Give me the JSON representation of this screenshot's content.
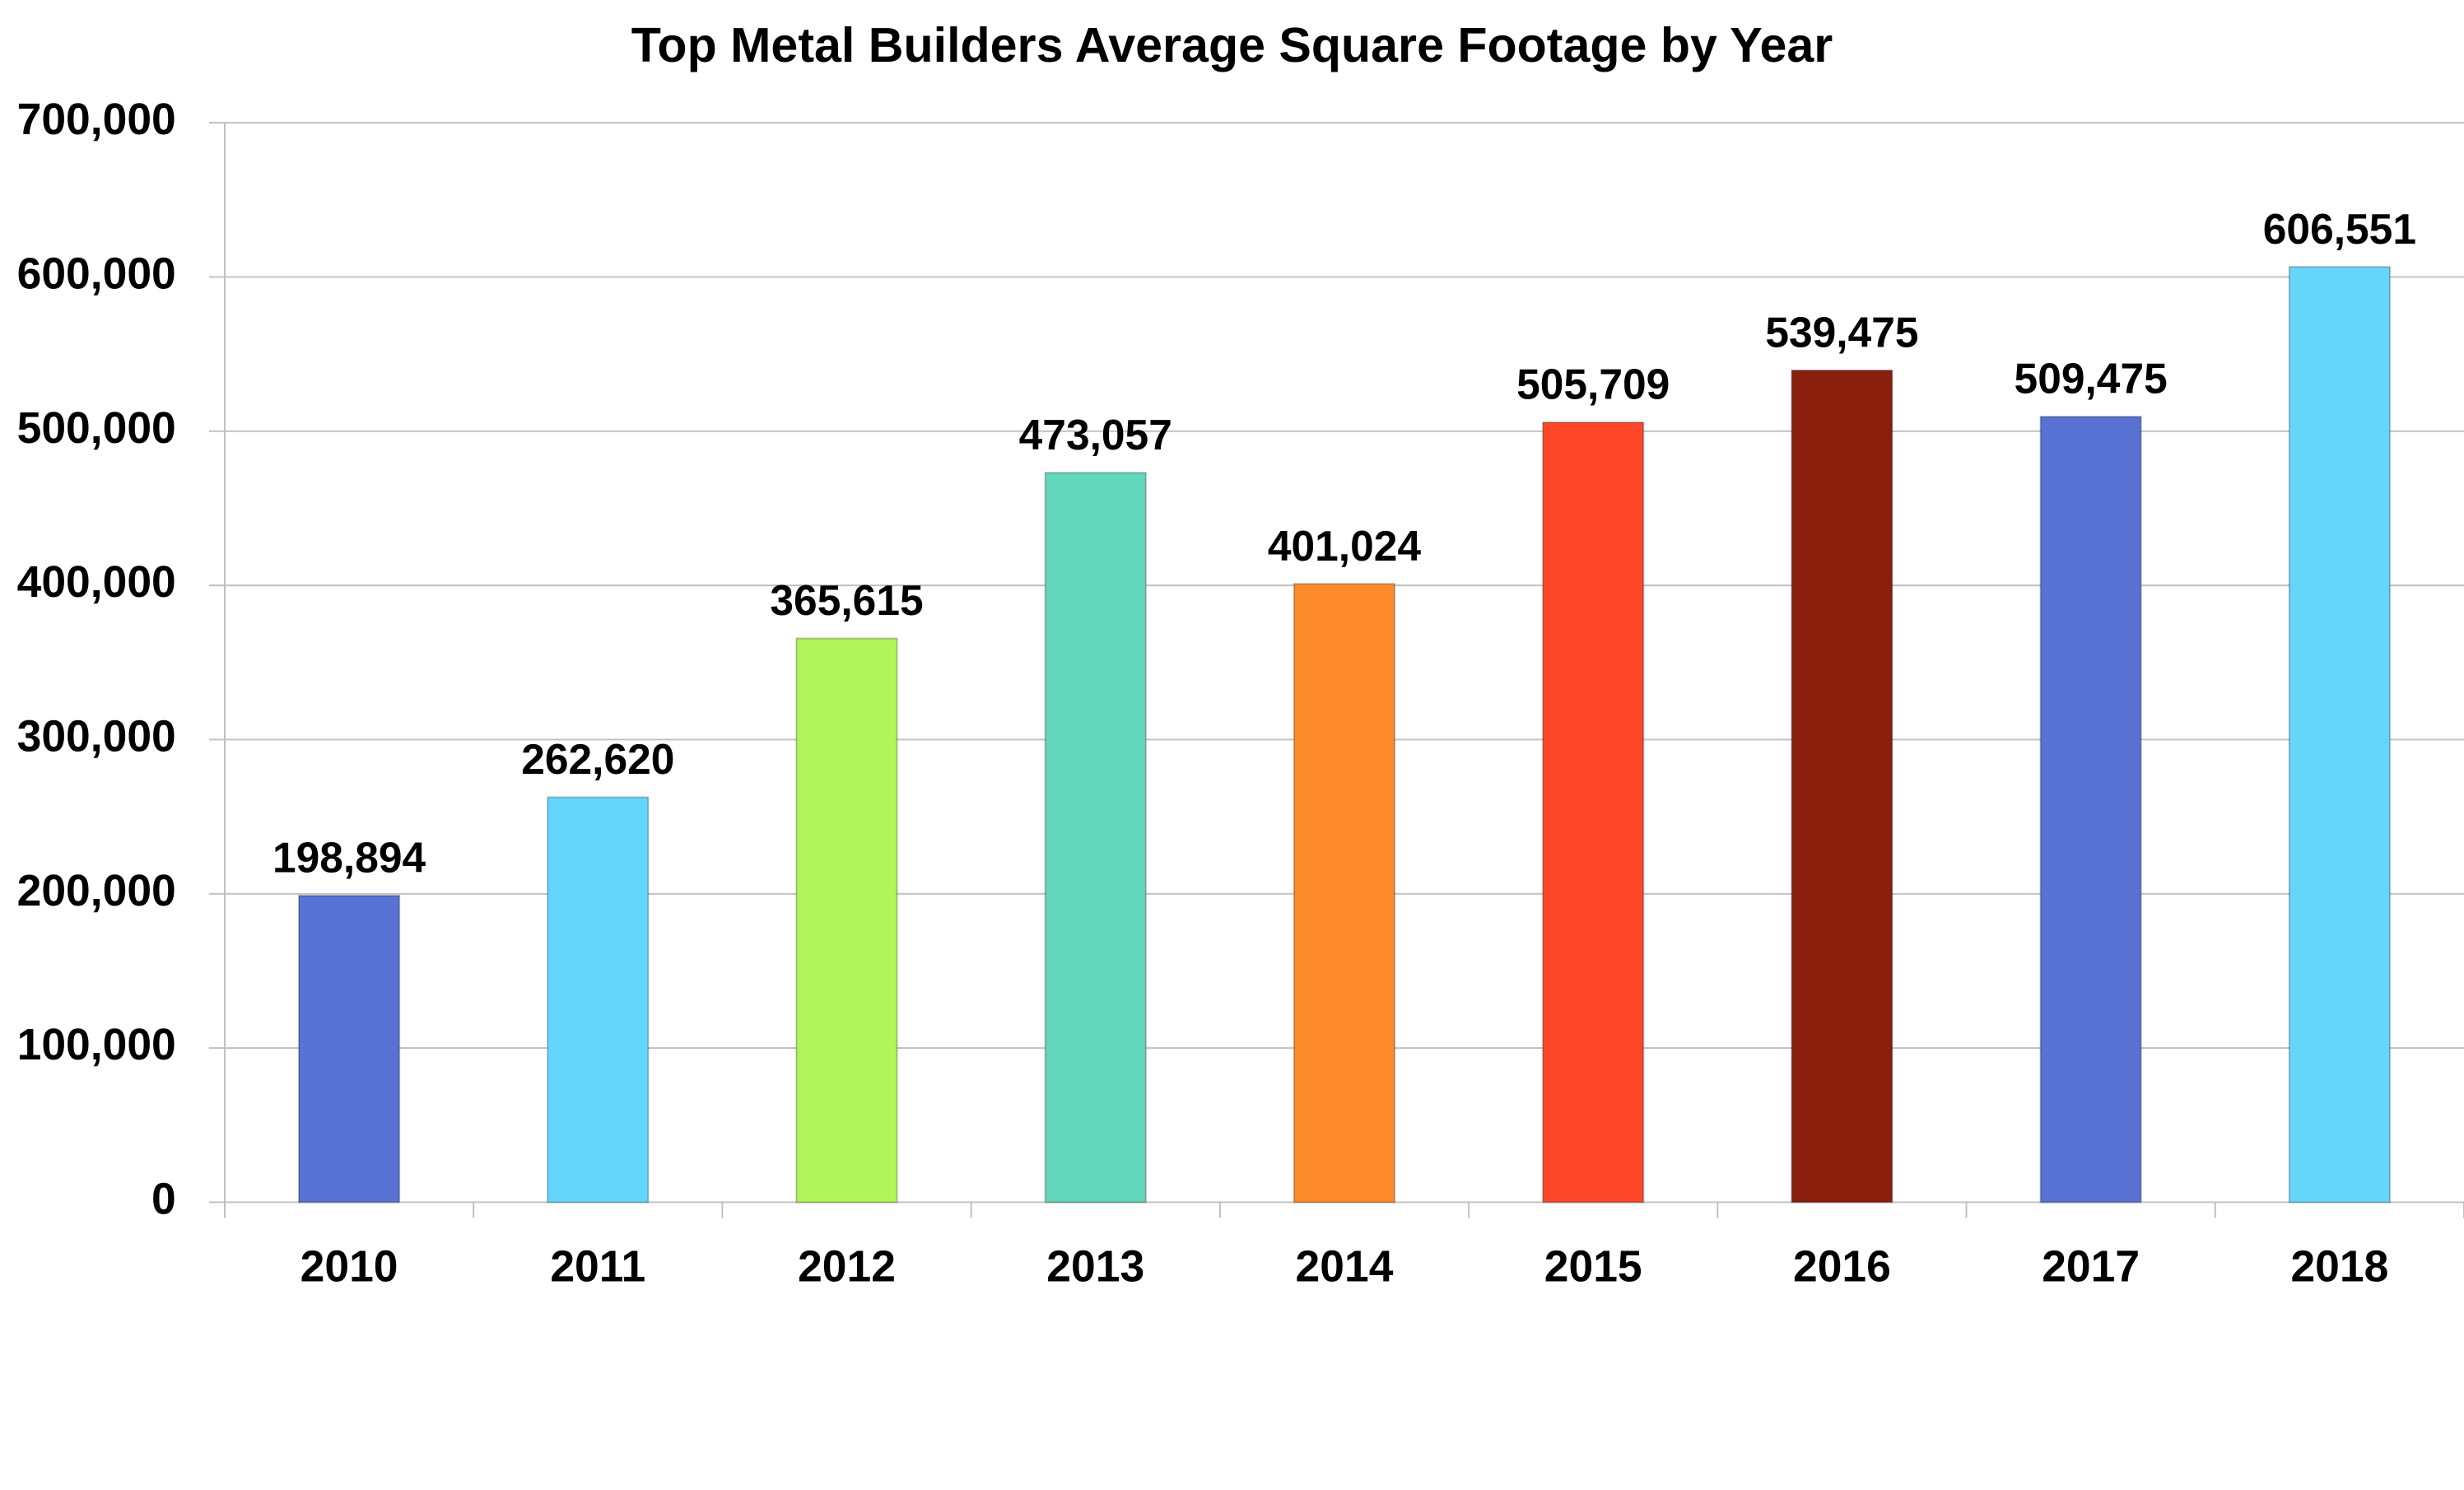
{
  "chart_data": {
    "type": "bar",
    "title": "Top Metal Builders Average Square Footage by Year",
    "categories": [
      "2010",
      "2011",
      "2012",
      "2013",
      "2014",
      "2015",
      "2016",
      "2017",
      "2018"
    ],
    "values": [
      198894,
      262620,
      365615,
      473057,
      401024,
      505709,
      539475,
      509475,
      606551
    ],
    "value_labels": [
      "198,894",
      "262,620",
      "365,615",
      "473,057",
      "401,024",
      "505,709",
      "539,475",
      "509,475",
      "606,551"
    ],
    "colors": [
      "#5872d4",
      "#64d6fc",
      "#b0f55a",
      "#62d7bc",
      "#fd8b2a",
      "#fe4729",
      "#8a1f0e",
      "#5872d4",
      "#64d6fc"
    ],
    "ylim": [
      0,
      700000
    ],
    "yticks": [
      0,
      {
        "value": 100000,
        "label": "100,000"
      },
      {
        "value": 200000,
        "label": "200,000"
      },
      {
        "value": 300000,
        "label": "300,000"
      },
      {
        "value": 400000,
        "label": "400,000"
      },
      {
        "value": 500000,
        "label": "500,000"
      },
      {
        "value": 600000,
        "label": "600,000"
      },
      {
        "value": 700000,
        "label": "700,000"
      }
    ],
    "grid": true
  }
}
